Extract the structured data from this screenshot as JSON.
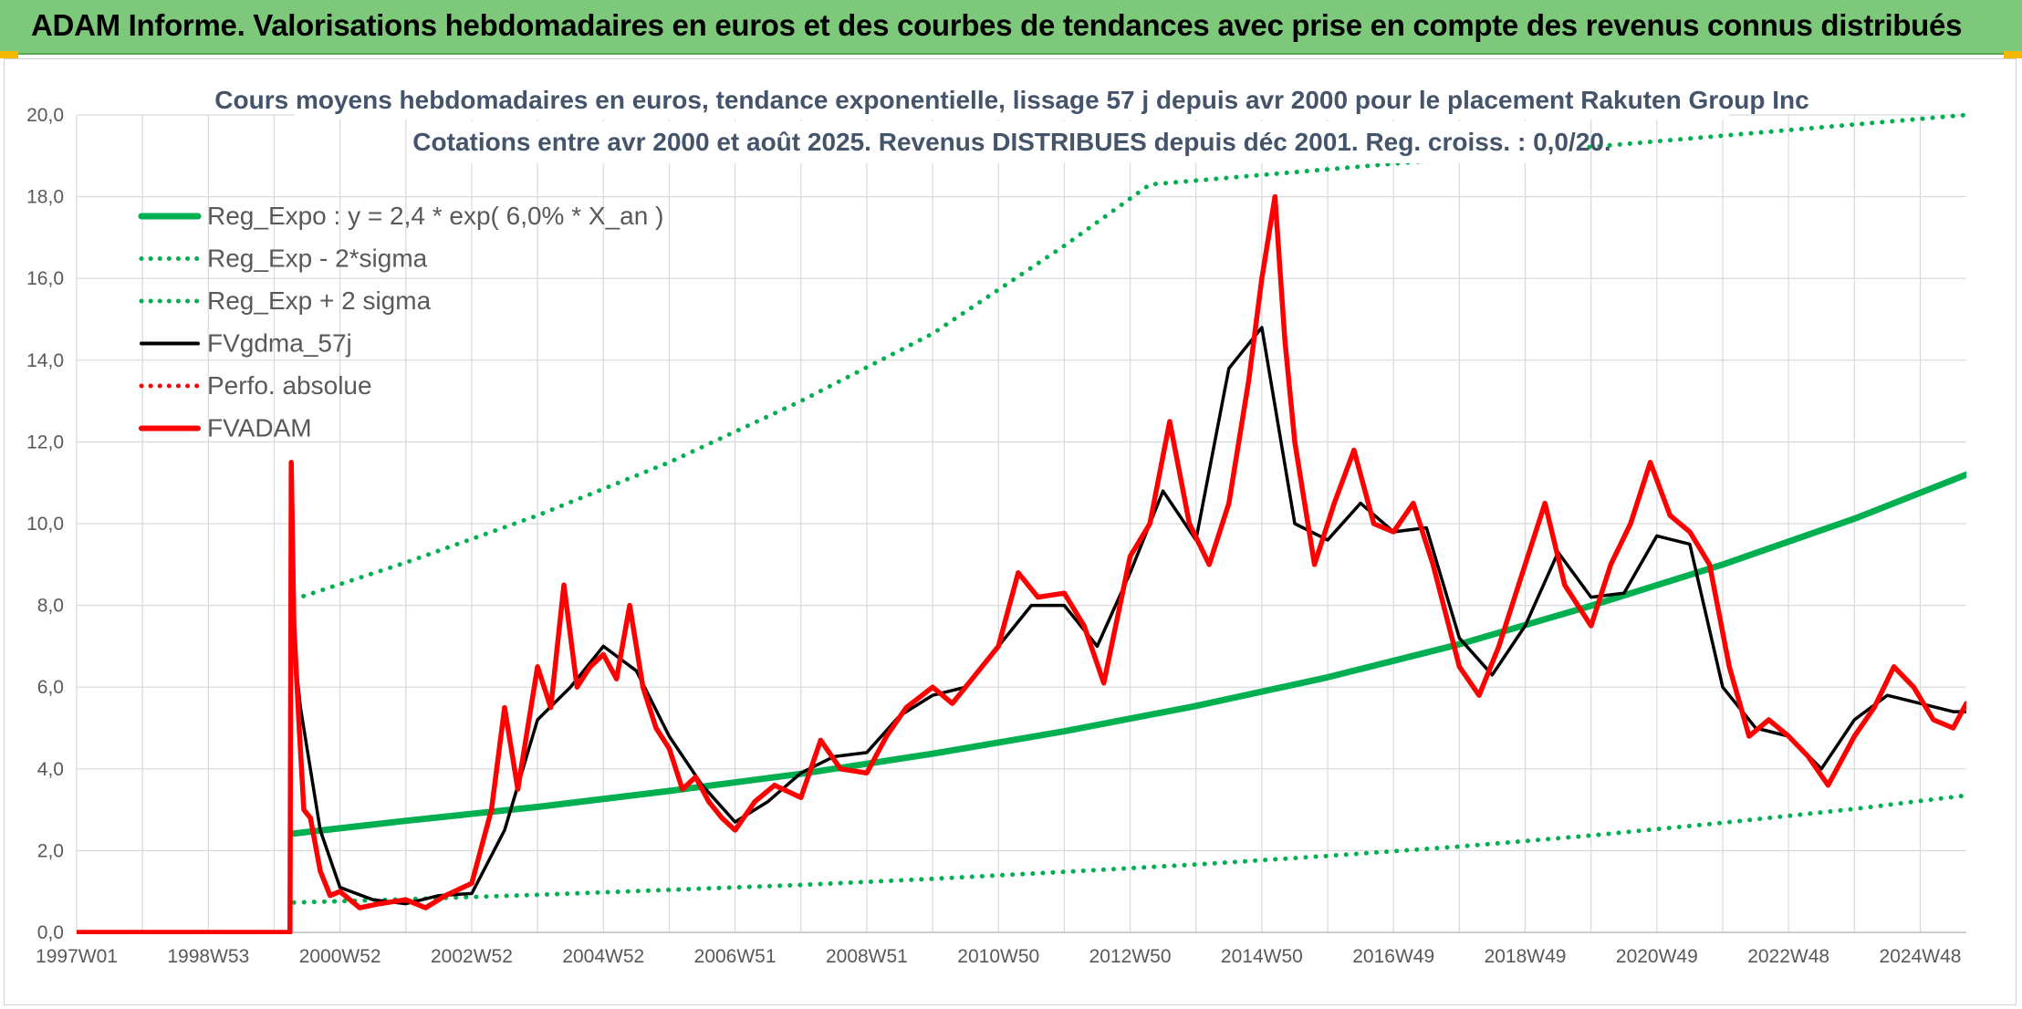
{
  "banner": {
    "title": "ADAM Informe. Valorisations hebdomadaires en euros et des courbes de tendances avec prise en compte des revenus connus distribués"
  },
  "colors": {
    "banner_bg": "#7dc87a",
    "green": "#00b050",
    "black": "#000000",
    "red": "#ff0000",
    "grid": "#d9d9d9"
  },
  "chart_data": {
    "type": "line",
    "title_line1": "Cours moyens hebdomadaires en euros, tendance exponentielle, lissage 57 j depuis avr 2000 pour le placement Rakuten Group Inc",
    "title_line2": "Cotations entre avr 2000 et août 2025. Revenus DISTRIBUES depuis déc 2001. Reg. croiss. : 0,0/20.",
    "xlabel": "",
    "ylabel": "",
    "x_unit": "year",
    "xlim": [
      1997.0,
      2025.7
    ],
    "ylim": [
      0,
      20
    ],
    "y_ticks": [
      "0,0",
      "2,0",
      "4,0",
      "6,0",
      "8,0",
      "10,0",
      "12,0",
      "14,0",
      "16,0",
      "18,0",
      "20,0"
    ],
    "x_ticks": [
      {
        "label": "1997W01",
        "x": 1997.0
      },
      {
        "label": "1998W53",
        "x": 1999.0
      },
      {
        "label": "2000W52",
        "x": 2001.0
      },
      {
        "label": "2002W52",
        "x": 2003.0
      },
      {
        "label": "2004W52",
        "x": 2005.0
      },
      {
        "label": "2006W51",
        "x": 2007.0
      },
      {
        "label": "2008W51",
        "x": 2009.0
      },
      {
        "label": "2010W50",
        "x": 2011.0
      },
      {
        "label": "2012W50",
        "x": 2013.0
      },
      {
        "label": "2014W50",
        "x": 2015.0
      },
      {
        "label": "2016W49",
        "x": 2017.0
      },
      {
        "label": "2018W49",
        "x": 2019.0
      },
      {
        "label": "2020W49",
        "x": 2021.0
      },
      {
        "label": "2022W48",
        "x": 2023.0
      },
      {
        "label": "2024W48",
        "x": 2025.0
      }
    ],
    "grid": true,
    "legend_position": "top-left",
    "series": [
      {
        "name": "Reg_Expo : y = 2,4 * exp( 6,0% *  X_an )",
        "color": "#00b050",
        "style": "solid",
        "x": [
          2000.3,
          2002,
          2004,
          2006,
          2008,
          2010,
          2012,
          2014,
          2016,
          2018,
          2020,
          2022,
          2024,
          2025.7
        ],
        "y": [
          2.42,
          2.73,
          3.07,
          3.46,
          3.88,
          4.37,
          4.92,
          5.54,
          6.24,
          7.05,
          7.99,
          9.0,
          10.12,
          11.2
        ]
      },
      {
        "name": "Reg_Exp - 2*sigma",
        "color": "#00b050",
        "style": "dotted",
        "x": [
          2000.3,
          2002,
          2004,
          2006,
          2008,
          2010,
          2012,
          2014,
          2016,
          2018,
          2020,
          2022,
          2024,
          2025.7
        ],
        "y": [
          0.73,
          0.81,
          0.92,
          1.04,
          1.16,
          1.31,
          1.48,
          1.66,
          1.87,
          2.1,
          2.37,
          2.68,
          3.02,
          3.35
        ]
      },
      {
        "name": "Reg_Exp + 2 sigma",
        "color": "#00b050",
        "style": "dotted",
        "x": [
          2000.3,
          2002,
          2004,
          2006,
          2008,
          2010,
          2012,
          2013.3,
          2025.7
        ],
        "y": [
          8.15,
          9.05,
          10.2,
          11.5,
          13.0,
          14.65,
          16.8,
          18.3,
          20.0
        ]
      },
      {
        "name": "FVgdma_57j",
        "color": "#000000",
        "style": "solid",
        "x": [
          2000.3,
          2000.4,
          2000.7,
          2001.0,
          2001.5,
          2002.0,
          2002.5,
          2003.0,
          2003.5,
          2004.0,
          2004.5,
          2005.0,
          2005.5,
          2006.0,
          2006.5,
          2007.0,
          2007.5,
          2008.0,
          2008.5,
          2009.0,
          2009.5,
          2010.0,
          2010.5,
          2011.0,
          2011.5,
          2012.0,
          2012.5,
          2013.0,
          2013.5,
          2014.0,
          2014.5,
          2015.0,
          2015.5,
          2016.0,
          2016.5,
          2017.0,
          2017.5,
          2018.0,
          2018.5,
          2019.0,
          2019.5,
          2020.0,
          2020.5,
          2021.0,
          2021.5,
          2022.0,
          2022.5,
          2023.0,
          2023.5,
          2024.0,
          2024.5,
          2025.0,
          2025.5,
          2025.7
        ],
        "y": [
          7.0,
          5.5,
          2.5,
          1.1,
          0.8,
          0.7,
          0.9,
          0.95,
          2.5,
          5.2,
          6.0,
          7.0,
          6.4,
          4.8,
          3.6,
          2.7,
          3.2,
          3.9,
          4.3,
          4.4,
          5.3,
          5.8,
          6.0,
          7.0,
          8.0,
          8.0,
          7.0,
          8.8,
          10.8,
          9.6,
          13.8,
          14.8,
          10.0,
          9.6,
          10.5,
          9.8,
          9.9,
          7.2,
          6.3,
          7.5,
          9.3,
          8.2,
          8.3,
          9.7,
          9.5,
          6.0,
          5.0,
          4.8,
          4.0,
          5.2,
          5.8,
          5.6,
          5.4,
          5.4
        ]
      },
      {
        "name": "Perfo. absolue",
        "color": "#ff0000",
        "style": "dotted",
        "x": [],
        "y": []
      },
      {
        "name": "FVADAM",
        "color": "#ff0000",
        "style": "solid",
        "x": [
          1997.0,
          2000.24,
          2000.26,
          2000.3,
          2000.38,
          2000.45,
          2000.55,
          2000.7,
          2000.85,
          2001.0,
          2001.3,
          2001.6,
          2002.0,
          2002.3,
          2002.6,
          2003.0,
          2003.3,
          2003.5,
          2003.7,
          2004.0,
          2004.2,
          2004.4,
          2004.6,
          2004.8,
          2005.0,
          2005.2,
          2005.4,
          2005.6,
          2005.8,
          2006.0,
          2006.2,
          2006.4,
          2006.6,
          2006.8,
          2007.0,
          2007.3,
          2007.6,
          2008.0,
          2008.3,
          2008.6,
          2009.0,
          2009.3,
          2009.6,
          2010.0,
          2010.3,
          2010.6,
          2011.0,
          2011.3,
          2011.6,
          2012.0,
          2012.3,
          2012.6,
          2013.0,
          2013.3,
          2013.6,
          2013.9,
          2014.2,
          2014.5,
          2014.8,
          2015.0,
          2015.2,
          2015.35,
          2015.5,
          2015.8,
          2016.1,
          2016.4,
          2016.7,
          2017.0,
          2017.3,
          2017.6,
          2018.0,
          2018.3,
          2018.6,
          2019.0,
          2019.3,
          2019.6,
          2020.0,
          2020.3,
          2020.6,
          2020.9,
          2021.2,
          2021.5,
          2021.8,
          2022.1,
          2022.4,
          2022.7,
          2023.0,
          2023.3,
          2023.6,
          2024.0,
          2024.3,
          2024.6,
          2024.9,
          2025.2,
          2025.5,
          2025.7
        ],
        "y": [
          0.0,
          0.0,
          11.5,
          7.5,
          5.0,
          3.0,
          2.8,
          1.5,
          0.9,
          1.0,
          0.6,
          0.7,
          0.8,
          0.6,
          0.9,
          1.2,
          3.0,
          5.5,
          3.5,
          6.5,
          5.5,
          8.5,
          6.0,
          6.5,
          6.8,
          6.2,
          8.0,
          6.0,
          5.0,
          4.5,
          3.5,
          3.8,
          3.2,
          2.8,
          2.5,
          3.2,
          3.6,
          3.3,
          4.7,
          4.0,
          3.9,
          4.8,
          5.5,
          6.0,
          5.6,
          6.2,
          7.0,
          8.8,
          8.2,
          8.3,
          7.5,
          6.1,
          9.2,
          10.0,
          12.5,
          10.0,
          9.0,
          10.5,
          13.5,
          16.0,
          18.0,
          14.5,
          12.0,
          9.0,
          10.5,
          11.8,
          10.0,
          9.8,
          10.5,
          9.0,
          6.5,
          5.8,
          7.0,
          9.0,
          10.5,
          8.5,
          7.5,
          9.0,
          10.0,
          11.5,
          10.2,
          9.8,
          9.0,
          6.5,
          4.8,
          5.2,
          4.8,
          4.3,
          3.6,
          4.8,
          5.5,
          6.5,
          6.0,
          5.2,
          5.0,
          5.6
        ]
      }
    ]
  }
}
